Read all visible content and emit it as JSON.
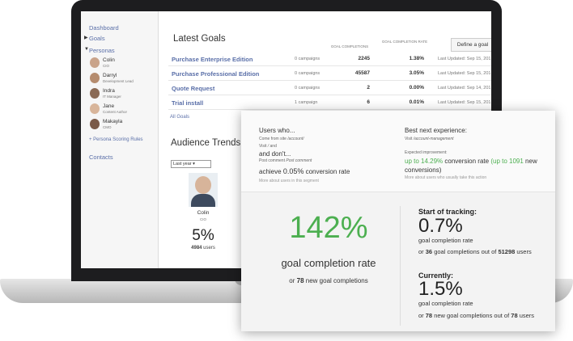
{
  "sidebar": {
    "dashboard": "Dashboard",
    "goals": "Goals",
    "personas_label": "Personas",
    "personas": [
      {
        "name": "Colin",
        "role": "CIO"
      },
      {
        "name": "Darryl",
        "role": "Development Lead"
      },
      {
        "name": "Indra",
        "role": "IT Manager"
      },
      {
        "name": "Jane",
        "role": "Content Author"
      },
      {
        "name": "Makayla",
        "role": "CMO"
      }
    ],
    "scoring": "+ Persona Scoring Rules",
    "contacts": "Contacts"
  },
  "goals": {
    "title": "Latest Goals",
    "col_completions": "GOAL COMPLETIONS",
    "col_rate": "GOAL COMPLETION RATE",
    "button": "Define a goal",
    "rows": [
      {
        "name": "Purchase Enterprise Edition",
        "campaigns": "0 campaigns",
        "completions": "2245",
        "rate": "1.38%",
        "updated": "Last Updated: Sep 15, 201"
      },
      {
        "name": "Purchase Professional Edition",
        "campaigns": "0 campaigns",
        "completions": "45587",
        "rate": "3.05%",
        "updated": "Last Updated: Sep 15, 201"
      },
      {
        "name": "Quote Request",
        "campaigns": "0 campaigns",
        "completions": "2",
        "rate": "0.00%",
        "updated": "Last Updated: Sep 14, 201"
      },
      {
        "name": "Trial install",
        "campaigns": "1 campaign",
        "completions": "6",
        "rate": "0.01%",
        "updated": "Last Updated: Sep 15, 201"
      }
    ],
    "all": "All Goals"
  },
  "trends": {
    "title": "Audience Trends",
    "select": "Last year",
    "name": "Colin",
    "role": "CIO",
    "percent": "5%",
    "users_count": "4984",
    "users_label": "users"
  },
  "card": {
    "users_who": "Users who...",
    "come_from": "Come from site",
    "come_path": "/account/",
    "visit": "Visit",
    "visit_path": "/",
    "visit_and": "and",
    "and_dont": "and don't...",
    "post1": "Post comment",
    "post2": "Post comment",
    "achieve": "achieve",
    "achieve_rate": "0.05%",
    "achieve_suffix": "conversion rate",
    "more_users": "More about users in this segment",
    "best": "Best next experience:",
    "best_visit": "Visit",
    "best_path": "/account-management",
    "expected": "Expected improvement:",
    "improve_a": "up to 14.29%",
    "improve_b": "conversion rate",
    "improve_c": "(up to 1091",
    "improve_d": "new",
    "improve_e": "conversions)",
    "more_action": "More about users who usually take this action",
    "big": "142%",
    "big_label": "goal completion rate",
    "big_or": "or",
    "big_count": "78",
    "big_suffix": "new goal completions",
    "start": "Start of tracking:",
    "start_value": "0.7%",
    "start_label": "goal completion rate",
    "start_or": "or",
    "start_count": "36",
    "start_mid": "goal completions out of",
    "start_users": "51298",
    "start_suffix": "users",
    "current": "Currently:",
    "current_value": "1.5%",
    "current_label": "goal completion rate",
    "current_or": "or",
    "current_count": "78",
    "current_mid": "new goal completions out of",
    "current_users": "78",
    "current_suffix": "users"
  }
}
